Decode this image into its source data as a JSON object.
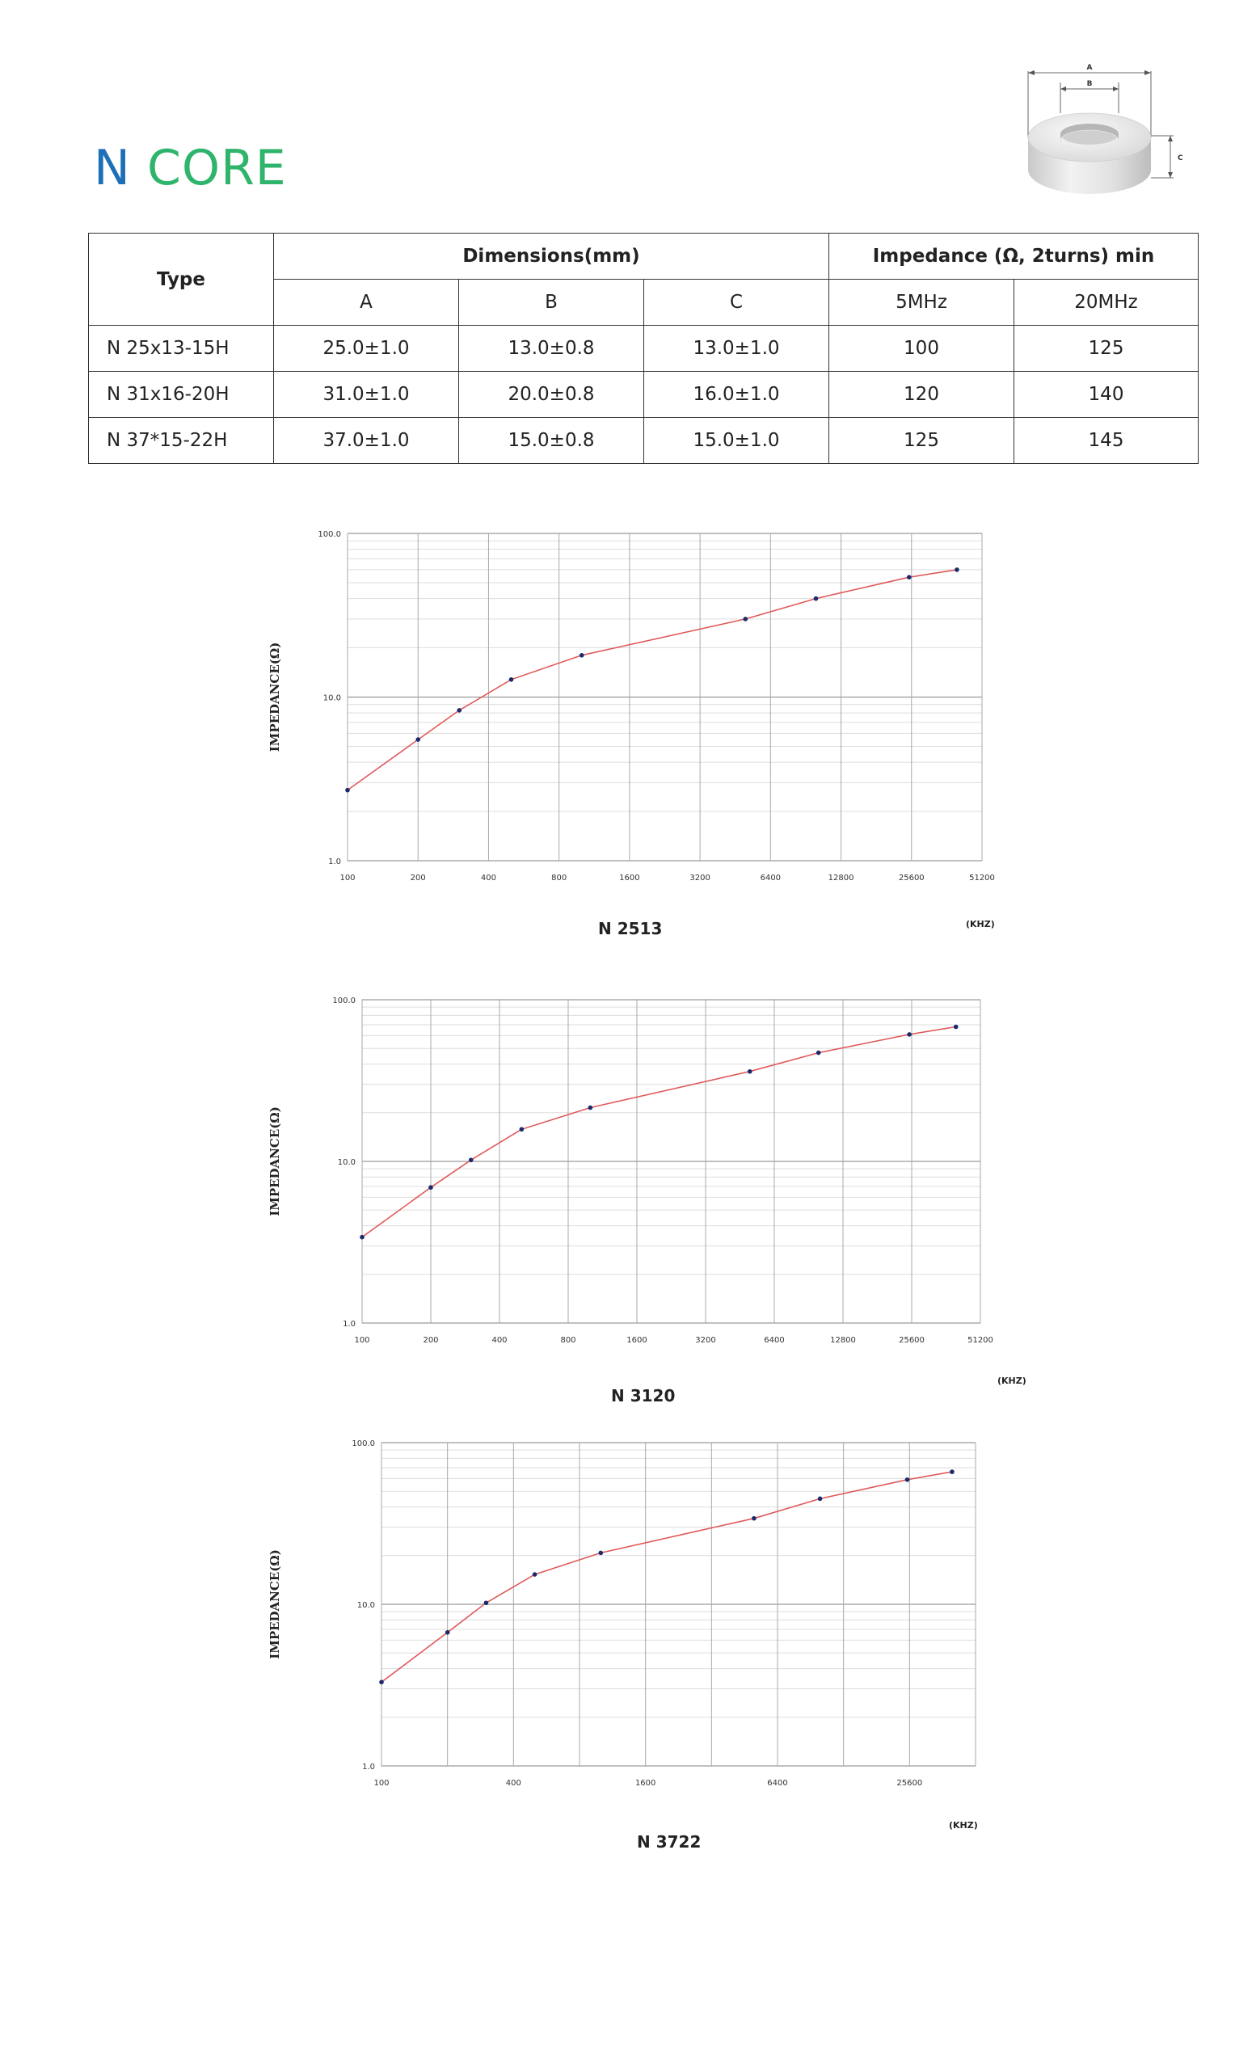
{
  "brand": {
    "name_first": "N",
    "name_second": "CORE"
  },
  "diagram_labels": {
    "a": "A",
    "b": "B",
    "c": "C"
  },
  "table": {
    "type_header": "Type",
    "dimensions_header": "Dimensions(mm)",
    "impedance_header": "Impedance (Ω, 2turns) min",
    "columns": [
      "A",
      "B",
      "C",
      "5MHz",
      "20MHz"
    ],
    "rows": [
      {
        "type": "N 25x13-15H",
        "a": "25.0±1.0",
        "b": "13.0±0.8",
        "c": "13.0±1.0",
        "z5": "100",
        "z20": "125"
      },
      {
        "type": "N 31x16-20H",
        "a": "31.0±1.0",
        "b": "20.0±0.8",
        "c": "16.0±1.0",
        "z5": "120",
        "z20": "140"
      },
      {
        "type": "N 37*15-22H",
        "a": "37.0±1.0",
        "b": "15.0±0.8",
        "c": "15.0±1.0",
        "z5": "125",
        "z20": "145"
      }
    ]
  },
  "chart_data": [
    {
      "type": "line",
      "title": "N 2513",
      "xlabel": "(KHZ)",
      "ylabel": "IMPEDANCE(Ω)",
      "x_scale": "log2",
      "y_scale": "log10",
      "xlim": [
        100,
        51200
      ],
      "ylim": [
        1,
        100
      ],
      "x_ticks": [
        "100",
        "200",
        "400",
        "800",
        "1600",
        "3200",
        "6400",
        "12800",
        "25600",
        "51200"
      ],
      "y_ticks": [
        "1.0",
        "10.0",
        "100.0"
      ],
      "grid": true,
      "line_color": "#e05a5a",
      "marker_color": "#1a2a6c",
      "points": [
        [
          100,
          2.7
        ],
        [
          200,
          5.5
        ],
        [
          300,
          8.3
        ],
        [
          500,
          12.8
        ],
        [
          1000,
          18
        ],
        [
          5000,
          30
        ],
        [
          10000,
          40
        ],
        [
          25000,
          54
        ],
        [
          40000,
          60
        ]
      ]
    },
    {
      "type": "line",
      "title": "N 3120",
      "xlabel": "(KHZ)",
      "ylabel": "IMPEDANCE(Ω)",
      "x_scale": "log2",
      "y_scale": "log10",
      "xlim": [
        100,
        51200
      ],
      "ylim": [
        1,
        100
      ],
      "x_ticks": [
        "100",
        "200",
        "400",
        "800",
        "1600",
        "3200",
        "6400",
        "12800",
        "25600",
        "51200"
      ],
      "y_ticks": [
        "1.0",
        "10.0",
        "100.0"
      ],
      "grid": true,
      "line_color": "#e05a5a",
      "marker_color": "#1a2a6c",
      "points": [
        [
          100,
          3.4
        ],
        [
          200,
          6.9
        ],
        [
          300,
          10.2
        ],
        [
          500,
          15.8
        ],
        [
          1000,
          21.5
        ],
        [
          5000,
          36
        ],
        [
          10000,
          47
        ],
        [
          25000,
          61
        ],
        [
          40000,
          68
        ]
      ]
    },
    {
      "type": "line",
      "title": "N 3722",
      "xlabel": "(KHZ)",
      "ylabel": "IMPEDANCE(Ω)",
      "x_scale": "log2",
      "y_scale": "log10",
      "xlim": [
        100,
        51200
      ],
      "ylim": [
        1,
        100
      ],
      "x_ticks": [
        "100",
        "400",
        "1600",
        "6400",
        "25600"
      ],
      "y_ticks": [
        "1.0",
        "10.0",
        "100.0"
      ],
      "grid": true,
      "line_color": "#e05a5a",
      "marker_color": "#1a2a6c",
      "points": [
        [
          100,
          3.3
        ],
        [
          200,
          6.7
        ],
        [
          300,
          10.2
        ],
        [
          500,
          15.3
        ],
        [
          1000,
          20.8
        ],
        [
          5000,
          34
        ],
        [
          10000,
          45
        ],
        [
          25000,
          59
        ],
        [
          40000,
          66
        ]
      ]
    }
  ]
}
